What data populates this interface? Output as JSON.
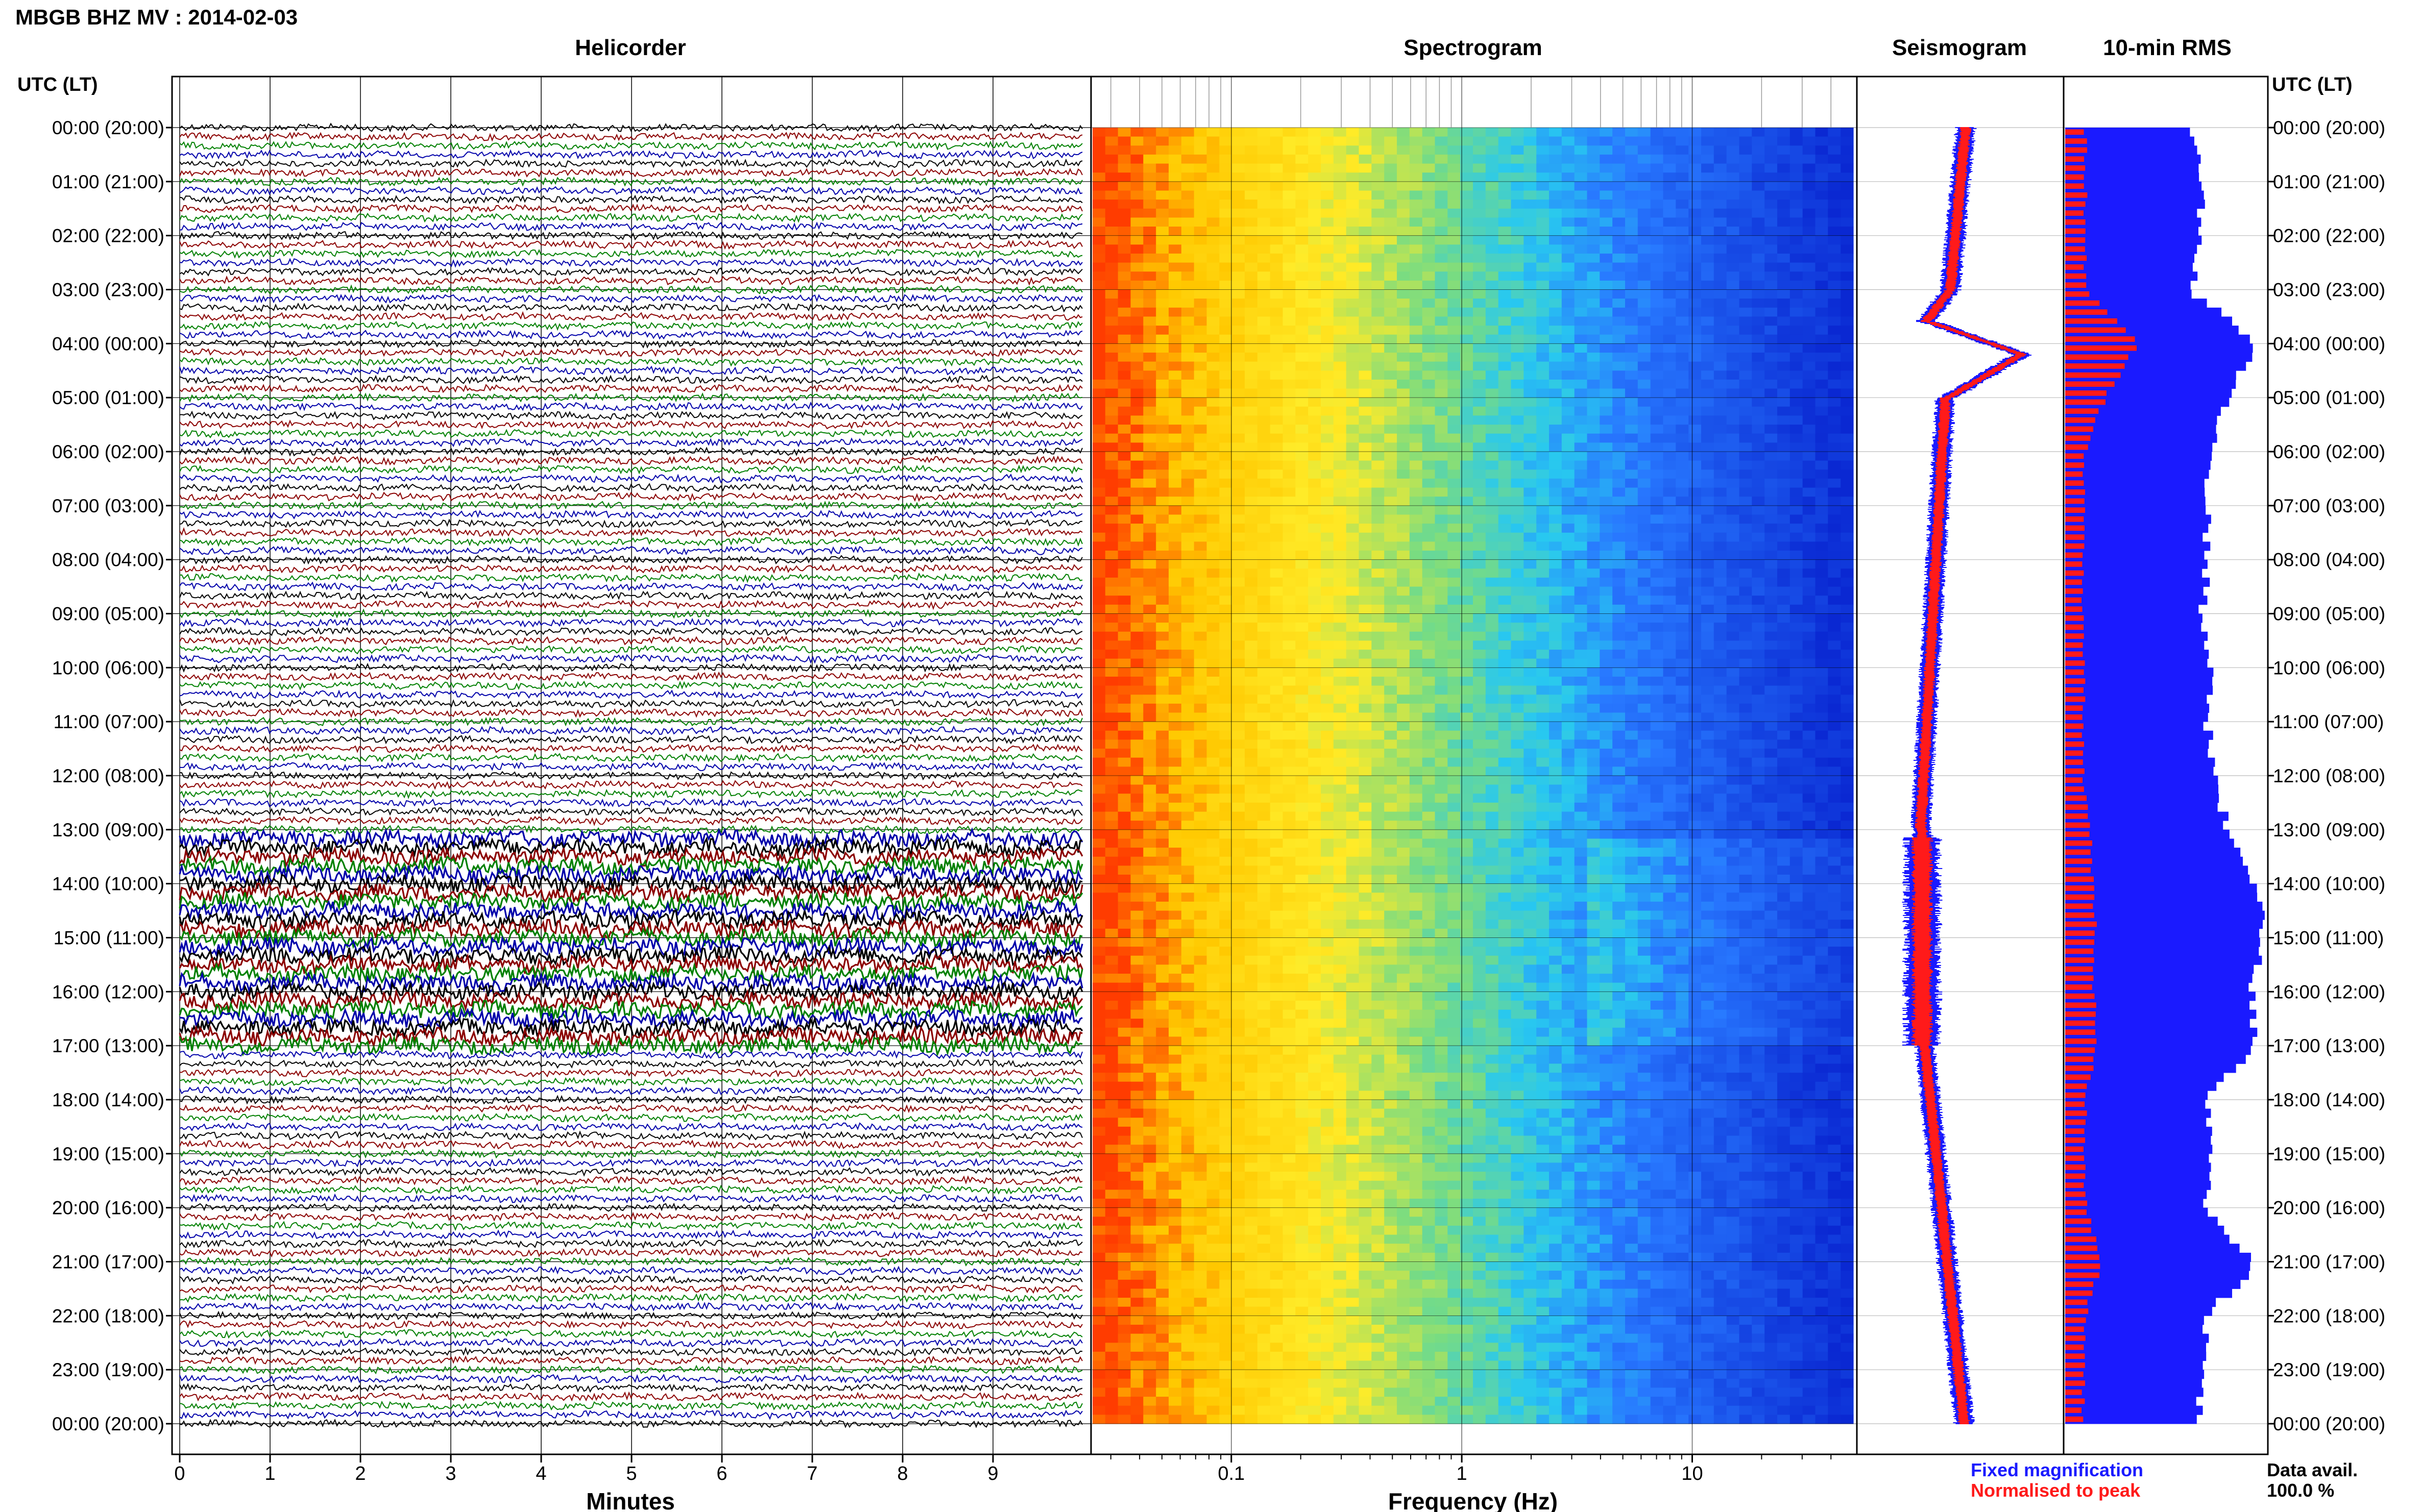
{
  "header": {
    "title": "MBGB BHZ MV : 2014-02-03",
    "utc_label": "UTC (LT)"
  },
  "panels": {
    "helicorder": "Helicorder",
    "spectrogram": "Spectrogram",
    "seismogram": "Seismogram",
    "rms": "10-min RMS"
  },
  "axes": {
    "minutes_label": "Minutes",
    "frequency_label": "Frequency (Hz)"
  },
  "legend": {
    "fixed": "Fixed magnification",
    "normalised": "Normalised to peak",
    "colors": {
      "fixed": "#1a1aff",
      "normalised": "#ff1a1a"
    }
  },
  "data_avail": {
    "label": "Data avail.",
    "value": "100.0 %"
  },
  "chart_data": {
    "type": "line",
    "station": "MBGB BHZ MV",
    "date": "2014-02-03",
    "hour_labels": [
      "00:00 (20:00)",
      "01:00 (21:00)",
      "02:00 (22:00)",
      "03:00 (23:00)",
      "04:00 (00:00)",
      "05:00 (01:00)",
      "06:00 (02:00)",
      "07:00 (03:00)",
      "08:00 (04:00)",
      "09:00 (05:00)",
      "10:00 (06:00)",
      "11:00 (07:00)",
      "12:00 (08:00)",
      "13:00 (09:00)",
      "14:00 (10:00)",
      "15:00 (11:00)",
      "16:00 (12:00)",
      "17:00 (13:00)",
      "18:00 (14:00)",
      "19:00 (15:00)",
      "20:00 (16:00)",
      "21:00 (17:00)",
      "22:00 (18:00)",
      "23:00 (19:00)",
      "00:00 (20:00)"
    ],
    "helicorder": {
      "x_ticks": [
        0,
        1,
        2,
        3,
        4,
        5,
        6,
        7,
        8,
        9
      ],
      "xlim": [
        0,
        10
      ],
      "trace_colors": [
        "#000000",
        "#8b0000",
        "#008000",
        "#0000aa"
      ],
      "lines_per_hour": 6,
      "noisy_band_hours": [
        13.15,
        17.0
      ]
    },
    "spectrogram": {
      "x_scale": "log",
      "x_ticks": [
        "0.1",
        "1",
        "10"
      ],
      "xlim": [
        0.025,
        50
      ]
    },
    "seismogram": {
      "series": [
        {
          "name": "Fixed magnification",
          "color": "#1a1aff"
        },
        {
          "name": "Normalised to peak",
          "color": "#ff1a1a"
        }
      ]
    },
    "rms": {
      "blue_profile": [
        0.64,
        0.66,
        0.68,
        0.62,
        0.95,
        0.8,
        0.72,
        0.7,
        0.71,
        0.68,
        0.72,
        0.7,
        0.74,
        0.8,
        0.95,
        0.98,
        0.92,
        0.95,
        0.7,
        0.74,
        0.68,
        0.95,
        0.7,
        0.68,
        0.66
      ],
      "red_profile": [
        0.1,
        0.1,
        0.1,
        0.1,
        0.36,
        0.2,
        0.1,
        0.09,
        0.09,
        0.09,
        0.09,
        0.09,
        0.09,
        0.12,
        0.14,
        0.15,
        0.14,
        0.16,
        0.1,
        0.1,
        0.1,
        0.18,
        0.1,
        0.09,
        0.09
      ]
    }
  }
}
